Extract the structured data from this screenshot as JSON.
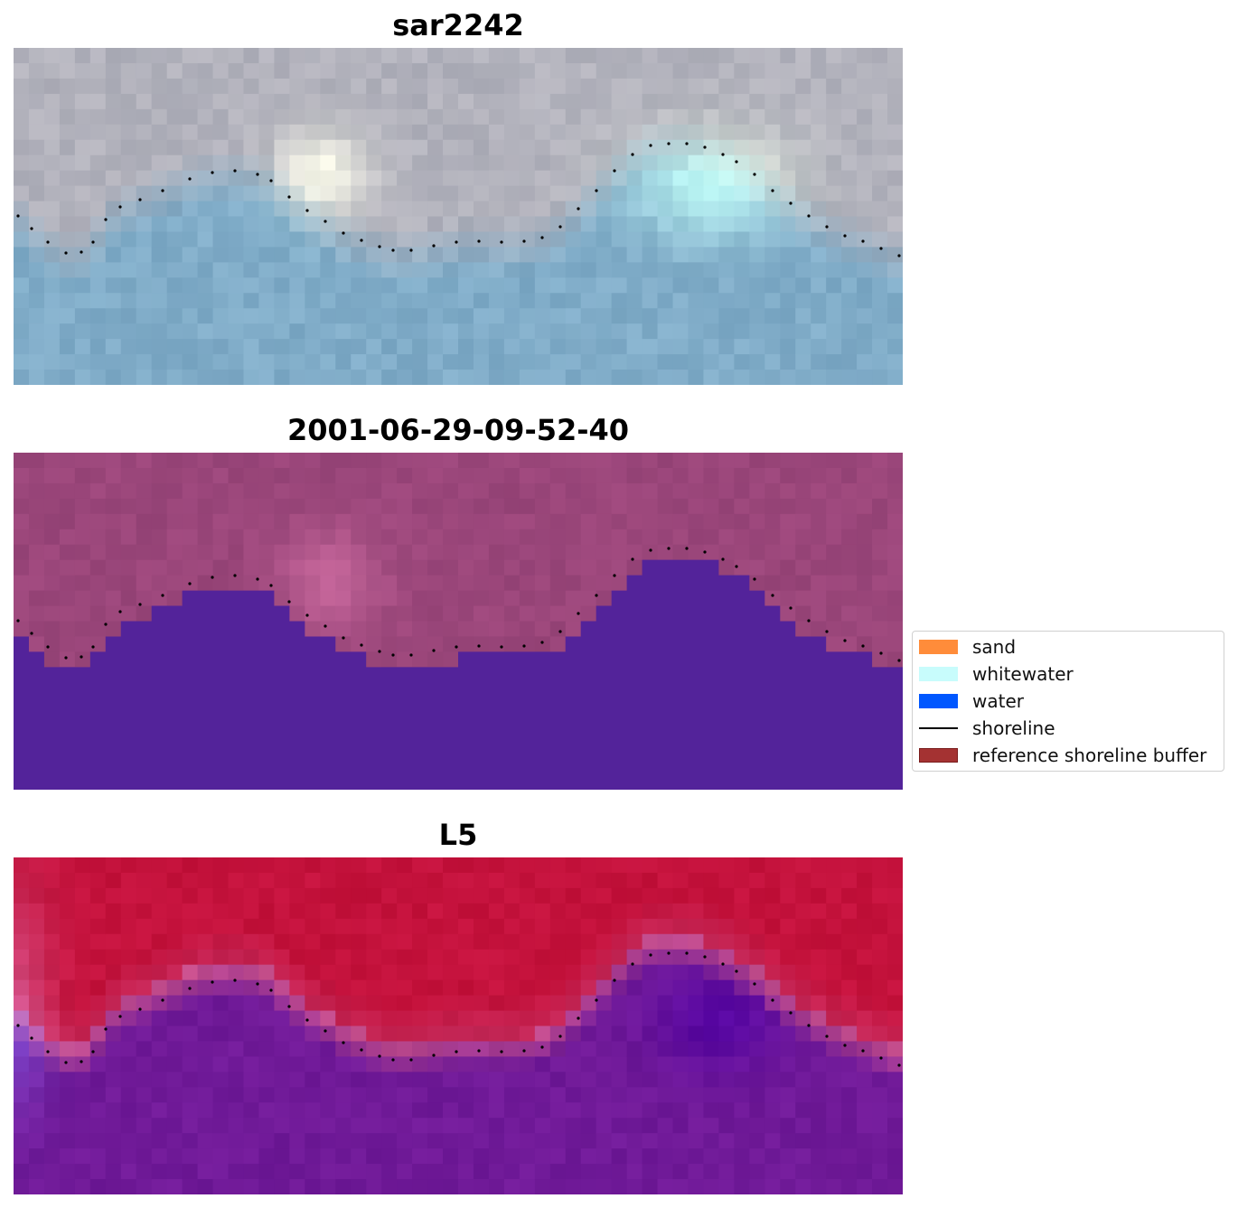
{
  "panels": [
    {
      "title": "sar2242",
      "style": "rgb"
    },
    {
      "title": "2001-06-29-09-52-40",
      "style": "classified"
    },
    {
      "title": "L5",
      "style": "index"
    }
  ],
  "legend": {
    "items": [
      {
        "label": "sand",
        "kind": "patch",
        "color": "#ff8c3a",
        "edge": "#ff8c3a"
      },
      {
        "label": "whitewater",
        "kind": "patch",
        "color": "#c8fcfc",
        "edge": "#c8fcfc"
      },
      {
        "label": "water",
        "kind": "patch",
        "color": "#0057ff",
        "edge": "#0057ff"
      },
      {
        "label": "shoreline",
        "kind": "line",
        "color": "#000000"
      },
      {
        "label": "reference shoreline buffer",
        "kind": "patch",
        "color": "#a43232",
        "edge": "#7a1c1c"
      }
    ]
  },
  "colors": {
    "water_mask": "#53239a",
    "land_tint": "#9a467a",
    "index_high": "#c2133e",
    "index_low": "#6c1898",
    "shoreline_dots": "#000000"
  }
}
